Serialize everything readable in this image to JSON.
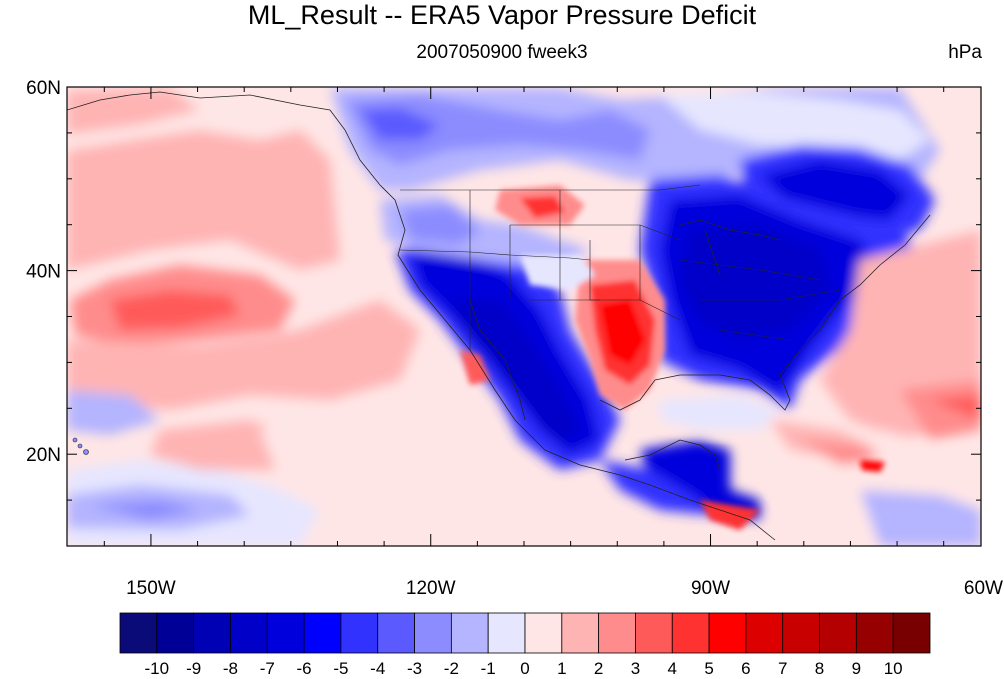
{
  "title": "ML_Result -- ERA5 Vapor Pressure Deficit",
  "subtitle": "2007050900 fweek3",
  "units": "hPa",
  "map": {
    "lon_range": [
      -159,
      -61
    ],
    "lat_range": [
      10,
      60
    ],
    "lat_ticks": [
      {
        "value": 60,
        "label": "60N"
      },
      {
        "value": 40,
        "label": "40N"
      },
      {
        "value": 20,
        "label": "20N"
      }
    ],
    "lon_ticks": [
      {
        "value": -150,
        "label": "150W"
      },
      {
        "value": -120,
        "label": "120W"
      },
      {
        "value": -90,
        "label": "90W"
      },
      {
        "value": -60,
        "label": "60W"
      }
    ]
  },
  "colorbar": {
    "colors": [
      "#0a0a78",
      "#000096",
      "#0000b4",
      "#0000c8",
      "#0000dc",
      "#0000ff",
      "#3232ff",
      "#5a5aff",
      "#8c8cff",
      "#b4b4ff",
      "#e6e6ff",
      "#ffe6e6",
      "#ffb4b4",
      "#ff8c8c",
      "#ff5a5a",
      "#ff3232",
      "#ff0000",
      "#dc0000",
      "#c80000",
      "#b40000",
      "#960000",
      "#780000"
    ],
    "labels": [
      "-10",
      "-9",
      "-8",
      "-7",
      "-6",
      "-5",
      "-4",
      "-3",
      "-2",
      "-1",
      "0",
      "1",
      "2",
      "3",
      "4",
      "5",
      "6",
      "7",
      "8",
      "9",
      "10"
    ]
  }
}
